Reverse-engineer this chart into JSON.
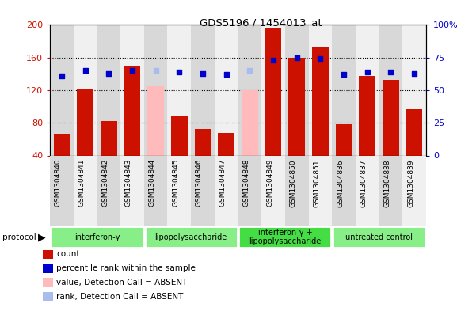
{
  "title": "GDS5196 / 1454013_at",
  "samples": [
    "GSM1304840",
    "GSM1304841",
    "GSM1304842",
    "GSM1304843",
    "GSM1304844",
    "GSM1304845",
    "GSM1304846",
    "GSM1304847",
    "GSM1304848",
    "GSM1304849",
    "GSM1304850",
    "GSM1304851",
    "GSM1304836",
    "GSM1304837",
    "GSM1304838",
    "GSM1304839"
  ],
  "counts": [
    67,
    122,
    82,
    150,
    125,
    88,
    72,
    68,
    120,
    196,
    160,
    172,
    78,
    137,
    133,
    97
  ],
  "absent": [
    false,
    false,
    false,
    false,
    true,
    false,
    false,
    false,
    true,
    false,
    false,
    false,
    false,
    false,
    false,
    false
  ],
  "percentile_ranks": [
    61,
    65,
    63,
    65,
    65,
    64,
    63,
    62,
    65,
    73,
    75,
    74,
    62,
    64,
    64,
    63
  ],
  "rank_absent": [
    false,
    false,
    false,
    false,
    true,
    false,
    false,
    false,
    true,
    false,
    false,
    false,
    false,
    false,
    false,
    false
  ],
  "groups": [
    {
      "label": "interferon-γ",
      "start": 0,
      "end": 4,
      "color": "#88ee88"
    },
    {
      "label": "lipopolysaccharide",
      "start": 4,
      "end": 8,
      "color": "#88ee88"
    },
    {
      "label": "interferon-γ +\nlipopolysaccharide",
      "start": 8,
      "end": 12,
      "color": "#44dd44"
    },
    {
      "label": "untreated control",
      "start": 12,
      "end": 16,
      "color": "#88ee88"
    }
  ],
  "ymin": 40,
  "ymax": 200,
  "yticks": [
    40,
    80,
    120,
    160,
    200
  ],
  "right_yticks": [
    0,
    25,
    50,
    75,
    100
  ],
  "bar_color_normal": "#cc1100",
  "bar_color_absent": "#ffbbbb",
  "dot_color_normal": "#0000cc",
  "dot_color_absent": "#aabbee",
  "stripe_even": "#d8d8d8",
  "stripe_odd": "#f0f0f0",
  "plot_bg": "#ffffff"
}
